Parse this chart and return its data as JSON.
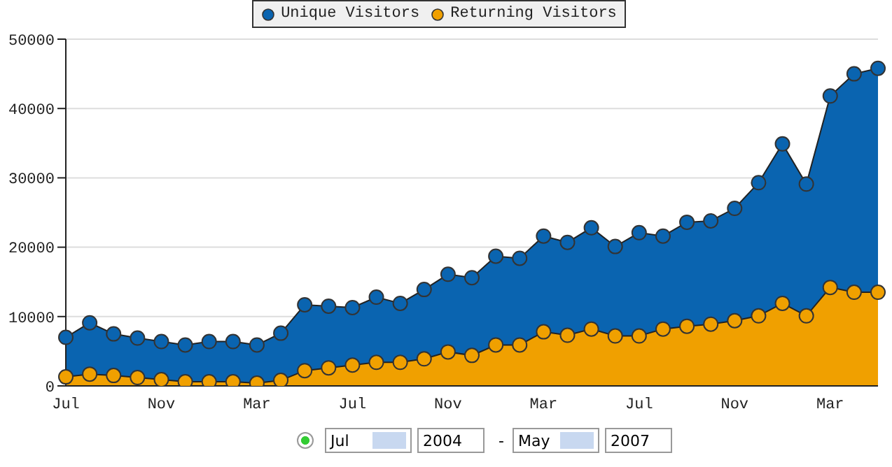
{
  "chart_data": {
    "type": "area",
    "categories": [
      "Jul",
      null,
      null,
      null,
      "Nov",
      null,
      null,
      null,
      "Mar",
      null,
      null,
      null,
      "Jul",
      null,
      null,
      null,
      "Nov",
      null,
      null,
      null,
      "Mar",
      null,
      null,
      null,
      "Jul",
      null,
      null,
      null,
      "Nov",
      null,
      null,
      null,
      "Mar",
      null,
      null
    ],
    "series": [
      {
        "name": "Unique Visitors",
        "color": "#0a64b0",
        "values": [
          7000,
          9100,
          7500,
          6900,
          6400,
          5900,
          6400,
          6400,
          5900,
          7600,
          11700,
          11500,
          11300,
          12800,
          11900,
          13900,
          16100,
          15600,
          18700,
          18400,
          21600,
          20700,
          22800,
          20100,
          22100,
          21600,
          23600,
          23800,
          25600,
          29300,
          34900,
          29100,
          41800,
          45000,
          45800
        ]
      },
      {
        "name": "Returning Visitors",
        "color": "#f0a000",
        "values": [
          1300,
          1700,
          1500,
          1200,
          900,
          600,
          600,
          600,
          400,
          800,
          2200,
          2600,
          3000,
          3400,
          3400,
          3900,
          4900,
          4400,
          5900,
          5900,
          7800,
          7300,
          8200,
          7200,
          7200,
          8200,
          8600,
          8900,
          9400,
          10100,
          11900,
          10100,
          14200,
          13500,
          13500
        ]
      }
    ],
    "ylim": [
      0,
      50000
    ],
    "yticks": [
      0,
      10000,
      20000,
      30000,
      40000,
      50000
    ],
    "grid": "y",
    "legend": "top",
    "marker": "circle",
    "annotations": [
      "Jul",
      "2004",
      "-",
      "May",
      "2007"
    ]
  }
}
